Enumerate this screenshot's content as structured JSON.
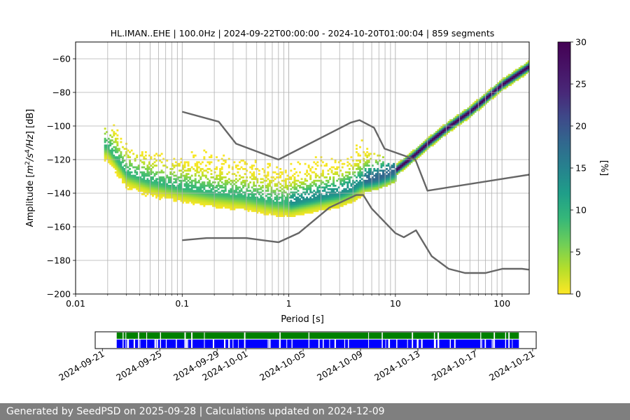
{
  "chart_data": [
    {
      "type": "heatmap",
      "title": "HL.IMAN..EHE | 100.0Hz | 2024-09-22T00:00:00 - 2024-10-20T01:00:04 | 859 segments",
      "xlabel": "Period [s]",
      "ylabel_parts": [
        "Amplitude [",
        "m",
        "2",
        "/",
        "s",
        "4",
        "/",
        "Hz",
        "] [dB]"
      ],
      "x_scale": "log",
      "xlim": [
        0.01,
        180
      ],
      "ylim": [
        -200,
        -50
      ],
      "xtick_values": [
        0.01,
        0.1,
        1,
        10,
        100
      ],
      "xtick_labels": [
        "0.01",
        "0.1",
        "1",
        "10",
        "100"
      ],
      "ytick_values": [
        -60,
        -80,
        -100,
        -120,
        -140,
        -160,
        -180,
        -200
      ],
      "ytick_labels": [
        "−60",
        "−80",
        "−100",
        "−120",
        "−140",
        "−160",
        "−180",
        "−200"
      ],
      "grid": true,
      "colorbar": {
        "label": "[%]",
        "range": [
          0,
          30
        ],
        "tick_values": [
          0,
          5,
          10,
          15,
          20,
          25,
          30
        ],
        "tick_labels": [
          "0",
          "5",
          "10",
          "15",
          "20",
          "25",
          "30"
        ],
        "colormap": "viridis"
      },
      "ppsd_mode": {
        "period": [
          0.02,
          0.03,
          0.05,
          0.1,
          0.2,
          0.4,
          0.7,
          1,
          2,
          3,
          4,
          5,
          7,
          10,
          15,
          20,
          30,
          50,
          100,
          180
        ],
        "amplitude": [
          -112,
          -128,
          -133,
          -137,
          -140,
          -142,
          -145,
          -146,
          -142,
          -140,
          -137,
          -133,
          -131,
          -127,
          -118,
          -111,
          -102,
          -92,
          -76,
          -65
        ]
      },
      "noise_models": [
        {
          "period": [
            0.1,
            0.22,
            0.32,
            0.8,
            3.8,
            4.6,
            6.3,
            7.9,
            15.4,
            20,
            354.8
          ],
          "amplitude": [
            -91.5,
            -97.4,
            -110.5,
            -120,
            -98,
            -96.5,
            -101,
            -113.5,
            -120,
            -138.5,
            -126
          ]
        },
        {
          "period": [
            0.1,
            0.17,
            0.4,
            0.8,
            1.24,
            2.4,
            4.3,
            5,
            6,
            10,
            12,
            15.6,
            21.9,
            31.6,
            45,
            70,
            101,
            154,
            178
          ],
          "amplitude": [
            -168,
            -166.7,
            -166.7,
            -169.2,
            -163.7,
            -148.6,
            -141.1,
            -141.1,
            -149.2,
            -163.8,
            -166.2,
            -162.1,
            -177.5,
            -185,
            -187.5,
            -187.5,
            -185,
            -185,
            -185.5
          ]
        }
      ]
    },
    {
      "type": "timeline",
      "xlim_dates": [
        "2024-09-20T12:00",
        "2024-10-21T06:00"
      ],
      "tick_labels": [
        "2024-09-21",
        "2024-09-25",
        "2024-09-29",
        "2024-10-01",
        "2024-10-05",
        "2024-10-09",
        "2024-10-13",
        "2024-10-17",
        "2024-10-21"
      ],
      "tick_dates": [
        "2024-09-21",
        "2024-09-25",
        "2024-09-29",
        "2024-10-01",
        "2024-10-05",
        "2024-10-09",
        "2024-10-13",
        "2024-10-17",
        "2024-10-21"
      ],
      "coverage": [
        "2024-09-22T00:00:00",
        "2024-10-20T01:00:04"
      ],
      "colors": {
        "data": "#0000ff",
        "used": "#008000"
      }
    }
  ],
  "footer": {
    "text": "Generated by SeedPSD on 2025-09-28 | Calculations updated on 2024-12-09"
  }
}
